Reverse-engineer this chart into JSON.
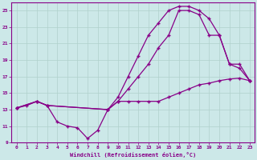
{
  "xlabel": "Windchill (Refroidissement éolien,°C)",
  "xlim": [
    -0.5,
    23.5
  ],
  "ylim": [
    9,
    26
  ],
  "yticks": [
    9,
    11,
    13,
    15,
    17,
    19,
    21,
    23,
    25
  ],
  "xticks": [
    0,
    1,
    2,
    3,
    4,
    5,
    6,
    7,
    8,
    9,
    10,
    11,
    12,
    13,
    14,
    15,
    16,
    17,
    18,
    19,
    20,
    21,
    22,
    23
  ],
  "bg_color": "#cce8e8",
  "grid_color": "#b0d0cc",
  "line_color": "#880088",
  "line1_x": [
    0,
    1,
    2,
    3,
    4,
    5,
    6,
    7,
    8,
    9,
    10,
    11,
    12,
    13,
    14,
    15,
    16,
    17,
    18,
    19,
    20,
    21,
    22,
    23
  ],
  "line1_y": [
    13.2,
    13.5,
    14.0,
    13.5,
    11.5,
    11.0,
    10.8,
    9.5,
    10.5,
    13.0,
    14.0,
    14.0,
    14.0,
    14.0,
    14.0,
    14.5,
    15.0,
    15.5,
    16.0,
    16.2,
    16.5,
    16.7,
    16.8,
    16.5
  ],
  "line2_x": [
    0,
    2,
    3,
    9,
    10,
    11,
    12,
    13,
    14,
    15,
    16,
    17,
    18,
    19,
    20,
    21,
    22,
    23
  ],
  "line2_y": [
    13.2,
    14.0,
    13.5,
    13.0,
    14.5,
    17.0,
    19.5,
    22.0,
    23.5,
    25.0,
    25.5,
    25.5,
    25.0,
    24.0,
    22.0,
    18.5,
    18.5,
    16.5
  ],
  "line3_x": [
    0,
    2,
    3,
    9,
    10,
    11,
    12,
    13,
    14,
    15,
    16,
    17,
    18,
    19,
    20,
    21,
    22,
    23
  ],
  "line3_y": [
    13.2,
    14.0,
    13.5,
    13.0,
    14.0,
    15.5,
    17.0,
    18.5,
    20.5,
    22.0,
    25.0,
    25.0,
    24.5,
    22.0,
    22.0,
    18.5,
    18.0,
    16.5
  ]
}
